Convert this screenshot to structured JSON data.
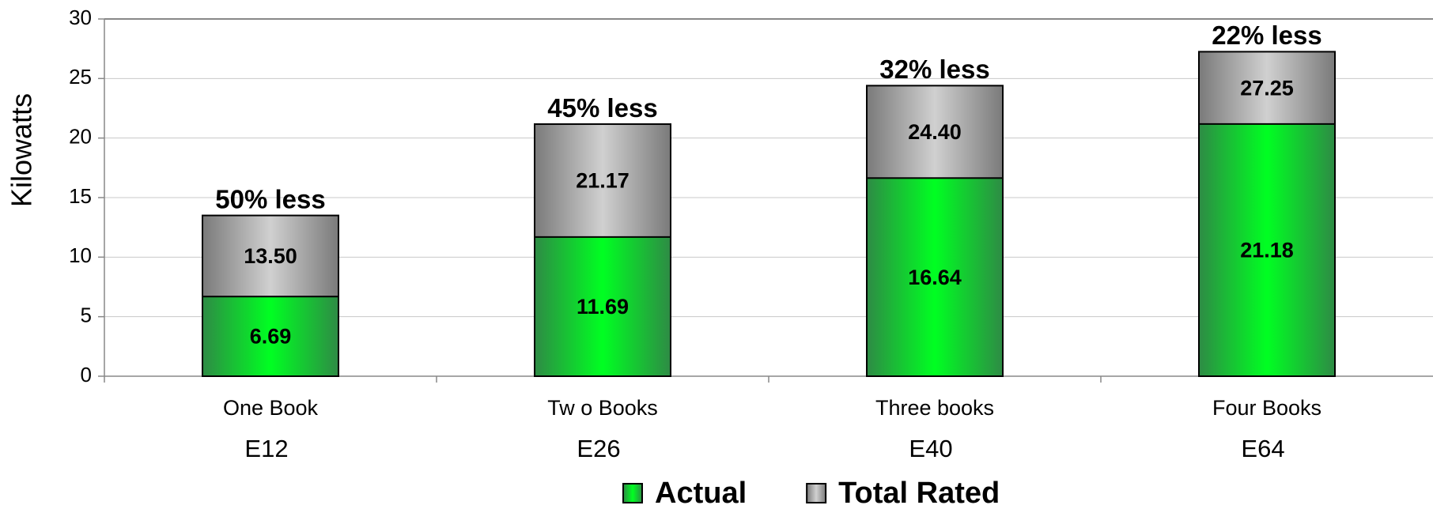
{
  "chart_data": {
    "type": "bar",
    "y_label": "Kilowatts",
    "categories": [
      "One Book",
      "Tw o Books",
      "Three books",
      "Four Books"
    ],
    "category_codes": [
      "E12",
      "E26",
      "E40",
      "E64"
    ],
    "series": [
      {
        "name": "Actual",
        "color": "#00ee22",
        "values": [
          6.69,
          11.69,
          16.64,
          21.18
        ],
        "value_labels": [
          "6.69",
          "11.69",
          "16.64",
          "21.18"
        ]
      },
      {
        "name": "Total Rated",
        "color": "#c4c4c4",
        "values": [
          13.5,
          21.17,
          24.4,
          27.25
        ],
        "value_labels": [
          "13.50",
          "21.17",
          "24.40",
          "27.25"
        ]
      }
    ],
    "annotations": [
      "50% less",
      "45% less",
      "32% less",
      "22% less"
    ],
    "ylim": [
      0,
      30
    ],
    "yticks": [
      0,
      5,
      10,
      15,
      20,
      25,
      30
    ],
    "grid": true,
    "legend": "bottom"
  }
}
